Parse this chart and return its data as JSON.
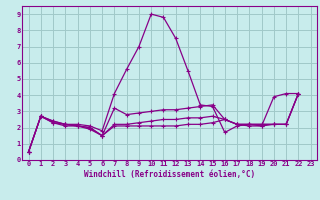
{
  "title": "",
  "xlabel": "Windchill (Refroidissement éolien,°C)",
  "bg_color": "#c8ecec",
  "grid_color": "#a0c8c8",
  "line_color": "#880088",
  "axis_color": "#880088",
  "xlim": [
    -0.5,
    23.5
  ],
  "ylim": [
    0,
    9.5
  ],
  "xticks": [
    0,
    1,
    2,
    3,
    4,
    5,
    6,
    7,
    8,
    9,
    10,
    11,
    12,
    13,
    14,
    15,
    16,
    17,
    18,
    19,
    20,
    21,
    22,
    23
  ],
  "yticks": [
    0,
    1,
    2,
    3,
    4,
    5,
    6,
    7,
    8,
    9
  ],
  "series": [
    {
      "x": [
        0,
        1,
        2,
        3,
        4,
        5,
        6,
        7,
        8,
        9,
        10,
        11,
        12,
        13,
        14,
        15,
        16,
        17,
        18,
        19,
        20,
        21,
        22
      ],
      "y": [
        0.5,
        2.7,
        2.4,
        2.2,
        2.2,
        2.1,
        1.8,
        4.1,
        5.6,
        7.0,
        9.0,
        8.8,
        7.5,
        5.5,
        3.4,
        3.3,
        1.7,
        2.1,
        2.2,
        2.1,
        3.9,
        4.1,
        4.1
      ]
    },
    {
      "x": [
        0,
        1,
        2,
        3,
        4,
        5,
        6,
        7,
        8,
        9,
        10,
        11,
        12,
        13,
        14,
        15,
        16,
        17,
        18,
        19,
        20,
        21,
        22
      ],
      "y": [
        0.5,
        2.7,
        2.4,
        2.2,
        2.1,
        2.0,
        1.5,
        3.2,
        2.8,
        2.9,
        3.0,
        3.1,
        3.1,
        3.2,
        3.3,
        3.4,
        2.5,
        2.2,
        2.2,
        2.2,
        2.2,
        2.2,
        4.1
      ]
    },
    {
      "x": [
        0,
        1,
        2,
        3,
        4,
        5,
        6,
        7,
        8,
        9,
        10,
        11,
        12,
        13,
        14,
        15,
        16,
        17,
        18,
        19,
        20,
        21,
        22
      ],
      "y": [
        0.5,
        2.7,
        2.3,
        2.2,
        2.1,
        2.0,
        1.5,
        2.2,
        2.2,
        2.3,
        2.4,
        2.5,
        2.5,
        2.6,
        2.6,
        2.7,
        2.5,
        2.2,
        2.2,
        2.2,
        2.2,
        2.2,
        4.1
      ]
    },
    {
      "x": [
        0,
        1,
        2,
        3,
        4,
        5,
        6,
        7,
        8,
        9,
        10,
        11,
        12,
        13,
        14,
        15,
        16,
        17,
        18,
        19,
        20,
        21,
        22
      ],
      "y": [
        0.5,
        2.7,
        2.3,
        2.1,
        2.1,
        1.9,
        1.5,
        2.1,
        2.1,
        2.1,
        2.1,
        2.1,
        2.1,
        2.2,
        2.2,
        2.3,
        2.5,
        2.2,
        2.1,
        2.1,
        2.2,
        2.2,
        4.1
      ]
    }
  ]
}
